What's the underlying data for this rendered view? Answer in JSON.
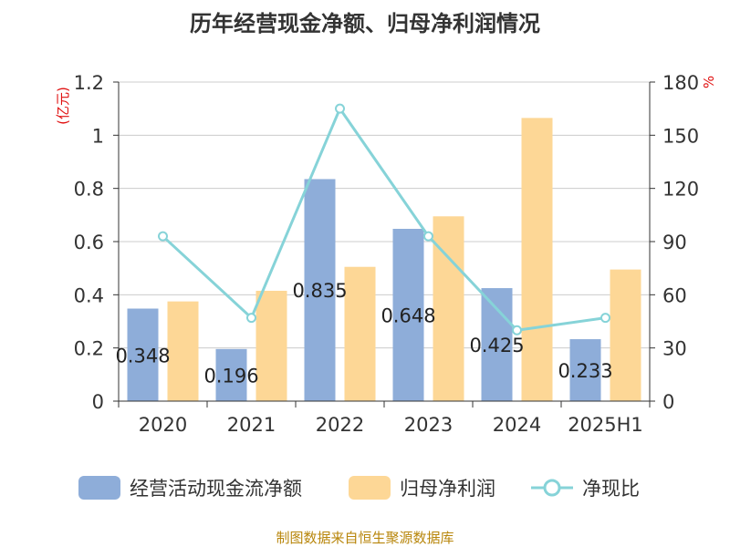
{
  "title": "历年经营现金净额、归母净利润情况",
  "source": "制图数据来自恒生聚源数据库",
  "colors": {
    "cash_flow": "#8eadd9",
    "net_profit": "#fdd796",
    "ratio": "#86d3d8",
    "left_unit": "#e01010",
    "axis": "#333333",
    "grid": "#cccccc",
    "title": "#333333",
    "source": "#b8860b"
  },
  "legend": [
    {
      "label": "经营活动现金流净额",
      "icon": "bar-swatch-blue"
    },
    {
      "label": "归母净利润",
      "icon": "bar-swatch-orange"
    },
    {
      "label": "净现比",
      "icon": "line-circle-marker"
    }
  ],
  "chart_data": {
    "type": "bar",
    "categories": [
      "2020",
      "2021",
      "2022",
      "2023",
      "2024",
      "2025H1"
    ],
    "series": [
      {
        "name": "经营活动现金流净额",
        "type": "bar",
        "axis": "left",
        "values": [
          0.348,
          0.196,
          0.835,
          0.648,
          0.425,
          0.233
        ],
        "data_labels": [
          "0.348",
          "0.196",
          "0.835",
          "0.648",
          "0.425",
          "0.233"
        ]
      },
      {
        "name": "归母净利润",
        "type": "bar",
        "axis": "left",
        "values": [
          0.375,
          0.415,
          0.505,
          0.695,
          1.065,
          0.495
        ]
      },
      {
        "name": "净现比",
        "type": "line",
        "axis": "right",
        "values": [
          93,
          47,
          165,
          93,
          40,
          47
        ]
      }
    ],
    "left_axis": {
      "label": "(亿元)",
      "ylim": [
        0,
        1.2
      ],
      "ticks": [
        "0",
        "0.2",
        "0.4",
        "0.6",
        "0.8",
        "1",
        "1.2"
      ],
      "tick_values": [
        0,
        0.2,
        0.4,
        0.6,
        0.8,
        1.0,
        1.2
      ]
    },
    "right_axis": {
      "label": "%",
      "ylim": [
        0,
        180
      ],
      "ticks": [
        "0",
        "30",
        "60",
        "90",
        "120",
        "150",
        "180"
      ],
      "tick_values": [
        0,
        30,
        60,
        90,
        120,
        150,
        180
      ]
    },
    "grid": true,
    "legend_position": "bottom"
  }
}
